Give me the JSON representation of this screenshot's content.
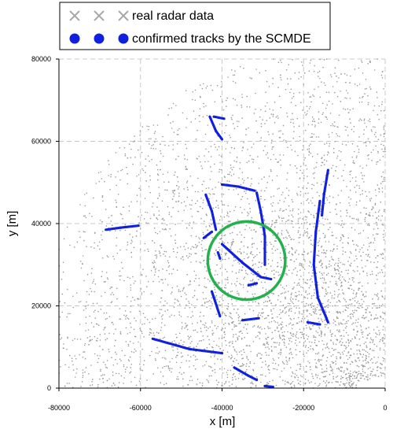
{
  "chart_data": {
    "type": "scatter",
    "title": "",
    "xlabel": "x [m]",
    "ylabel": "y [m]",
    "xlim": [
      -80000,
      0
    ],
    "ylim": [
      0,
      80000
    ],
    "x_ticks": [
      "-80000",
      "-60000",
      "-40000",
      "-20000",
      "0"
    ],
    "y_ticks": [
      "0",
      "20000",
      "40000",
      "60000",
      "80000"
    ],
    "grid": true,
    "legend_position": "top",
    "legend": [
      {
        "label": "real radar data",
        "marker": "x",
        "color": "#a8a8a8"
      },
      {
        "label": "confirmed tracks by the SCMDE",
        "marker": "circle",
        "color": "#1020e0"
      }
    ],
    "colors": {
      "radar": "#9a9a9a",
      "tracks": "#1020e0",
      "highlight": "#22b14c",
      "grid": "#c8c8c8"
    },
    "series": [
      {
        "name": "real radar data",
        "kind": "clutter",
        "note_values": "dense clutter within the radar coverage sector"
      },
      {
        "name": "confirmed tracks by the SCMDE",
        "tracks": [
          {
            "points": [
              [
                -43000,
                66000
              ],
              [
                -41500,
                62500
              ],
              [
                -40000,
                60500
              ]
            ]
          },
          {
            "points": [
              [
                -42000,
                66000
              ],
              [
                -39500,
                65500
              ]
            ]
          },
          {
            "points": [
              [
                -68500,
                38500
              ],
              [
                -65000,
                39000
              ],
              [
                -60500,
                39500
              ]
            ]
          },
          {
            "points": [
              [
                -44000,
                47000
              ],
              [
                -42500,
                43000
              ],
              [
                -41500,
                38500
              ]
            ]
          },
          {
            "points": [
              [
                -40000,
                49500
              ],
              [
                -36000,
                49000
              ],
              [
                -32000,
                48000
              ]
            ]
          },
          {
            "points": [
              [
                -31500,
                47500
              ],
              [
                -30500,
                43000
              ],
              [
                -29500,
                37000
              ],
              [
                -29500,
                30000
              ]
            ]
          },
          {
            "points": [
              [
                -40000,
                35000
              ],
              [
                -35000,
                30500
              ],
              [
                -30500,
                27000
              ],
              [
                -28000,
                26500
              ]
            ]
          },
          {
            "points": [
              [
                -41000,
                33000
              ],
              [
                -40500,
                31500
              ]
            ]
          },
          {
            "points": [
              [
                -33500,
                25000
              ],
              [
                -31500,
                25500
              ]
            ]
          },
          {
            "points": [
              [
                -42500,
                23500
              ],
              [
                -40500,
                17500
              ]
            ]
          },
          {
            "points": [
              [
                -44500,
                36500
              ],
              [
                -42500,
                38000
              ]
            ]
          },
          {
            "points": [
              [
                -35000,
                16500
              ],
              [
                -31000,
                17000
              ]
            ]
          },
          {
            "points": [
              [
                -16000,
                45500
              ],
              [
                -17000,
                38000
              ],
              [
                -17500,
                30000
              ],
              [
                -16500,
                22000
              ],
              [
                -14000,
                16000
              ]
            ]
          },
          {
            "points": [
              [
                -14000,
                53000
              ],
              [
                -15000,
                47000
              ],
              [
                -15500,
                42000
              ]
            ]
          },
          {
            "points": [
              [
                -19000,
                16000
              ],
              [
                -16000,
                15500
              ]
            ]
          },
          {
            "points": [
              [
                -57000,
                12000
              ],
              [
                -48000,
                9500
              ],
              [
                -40000,
                8500
              ]
            ]
          },
          {
            "points": [
              [
                -37000,
                5000
              ],
              [
                -33500,
                3000
              ],
              [
                -31500,
                2000
              ]
            ]
          },
          {
            "points": [
              [
                -29500,
                500
              ],
              [
                -27500,
                300
              ]
            ]
          }
        ]
      }
    ],
    "annotations": [
      {
        "type": "circle",
        "center": [
          -34000,
          31000
        ],
        "radius": 9500,
        "color": "#22b14c"
      }
    ]
  }
}
